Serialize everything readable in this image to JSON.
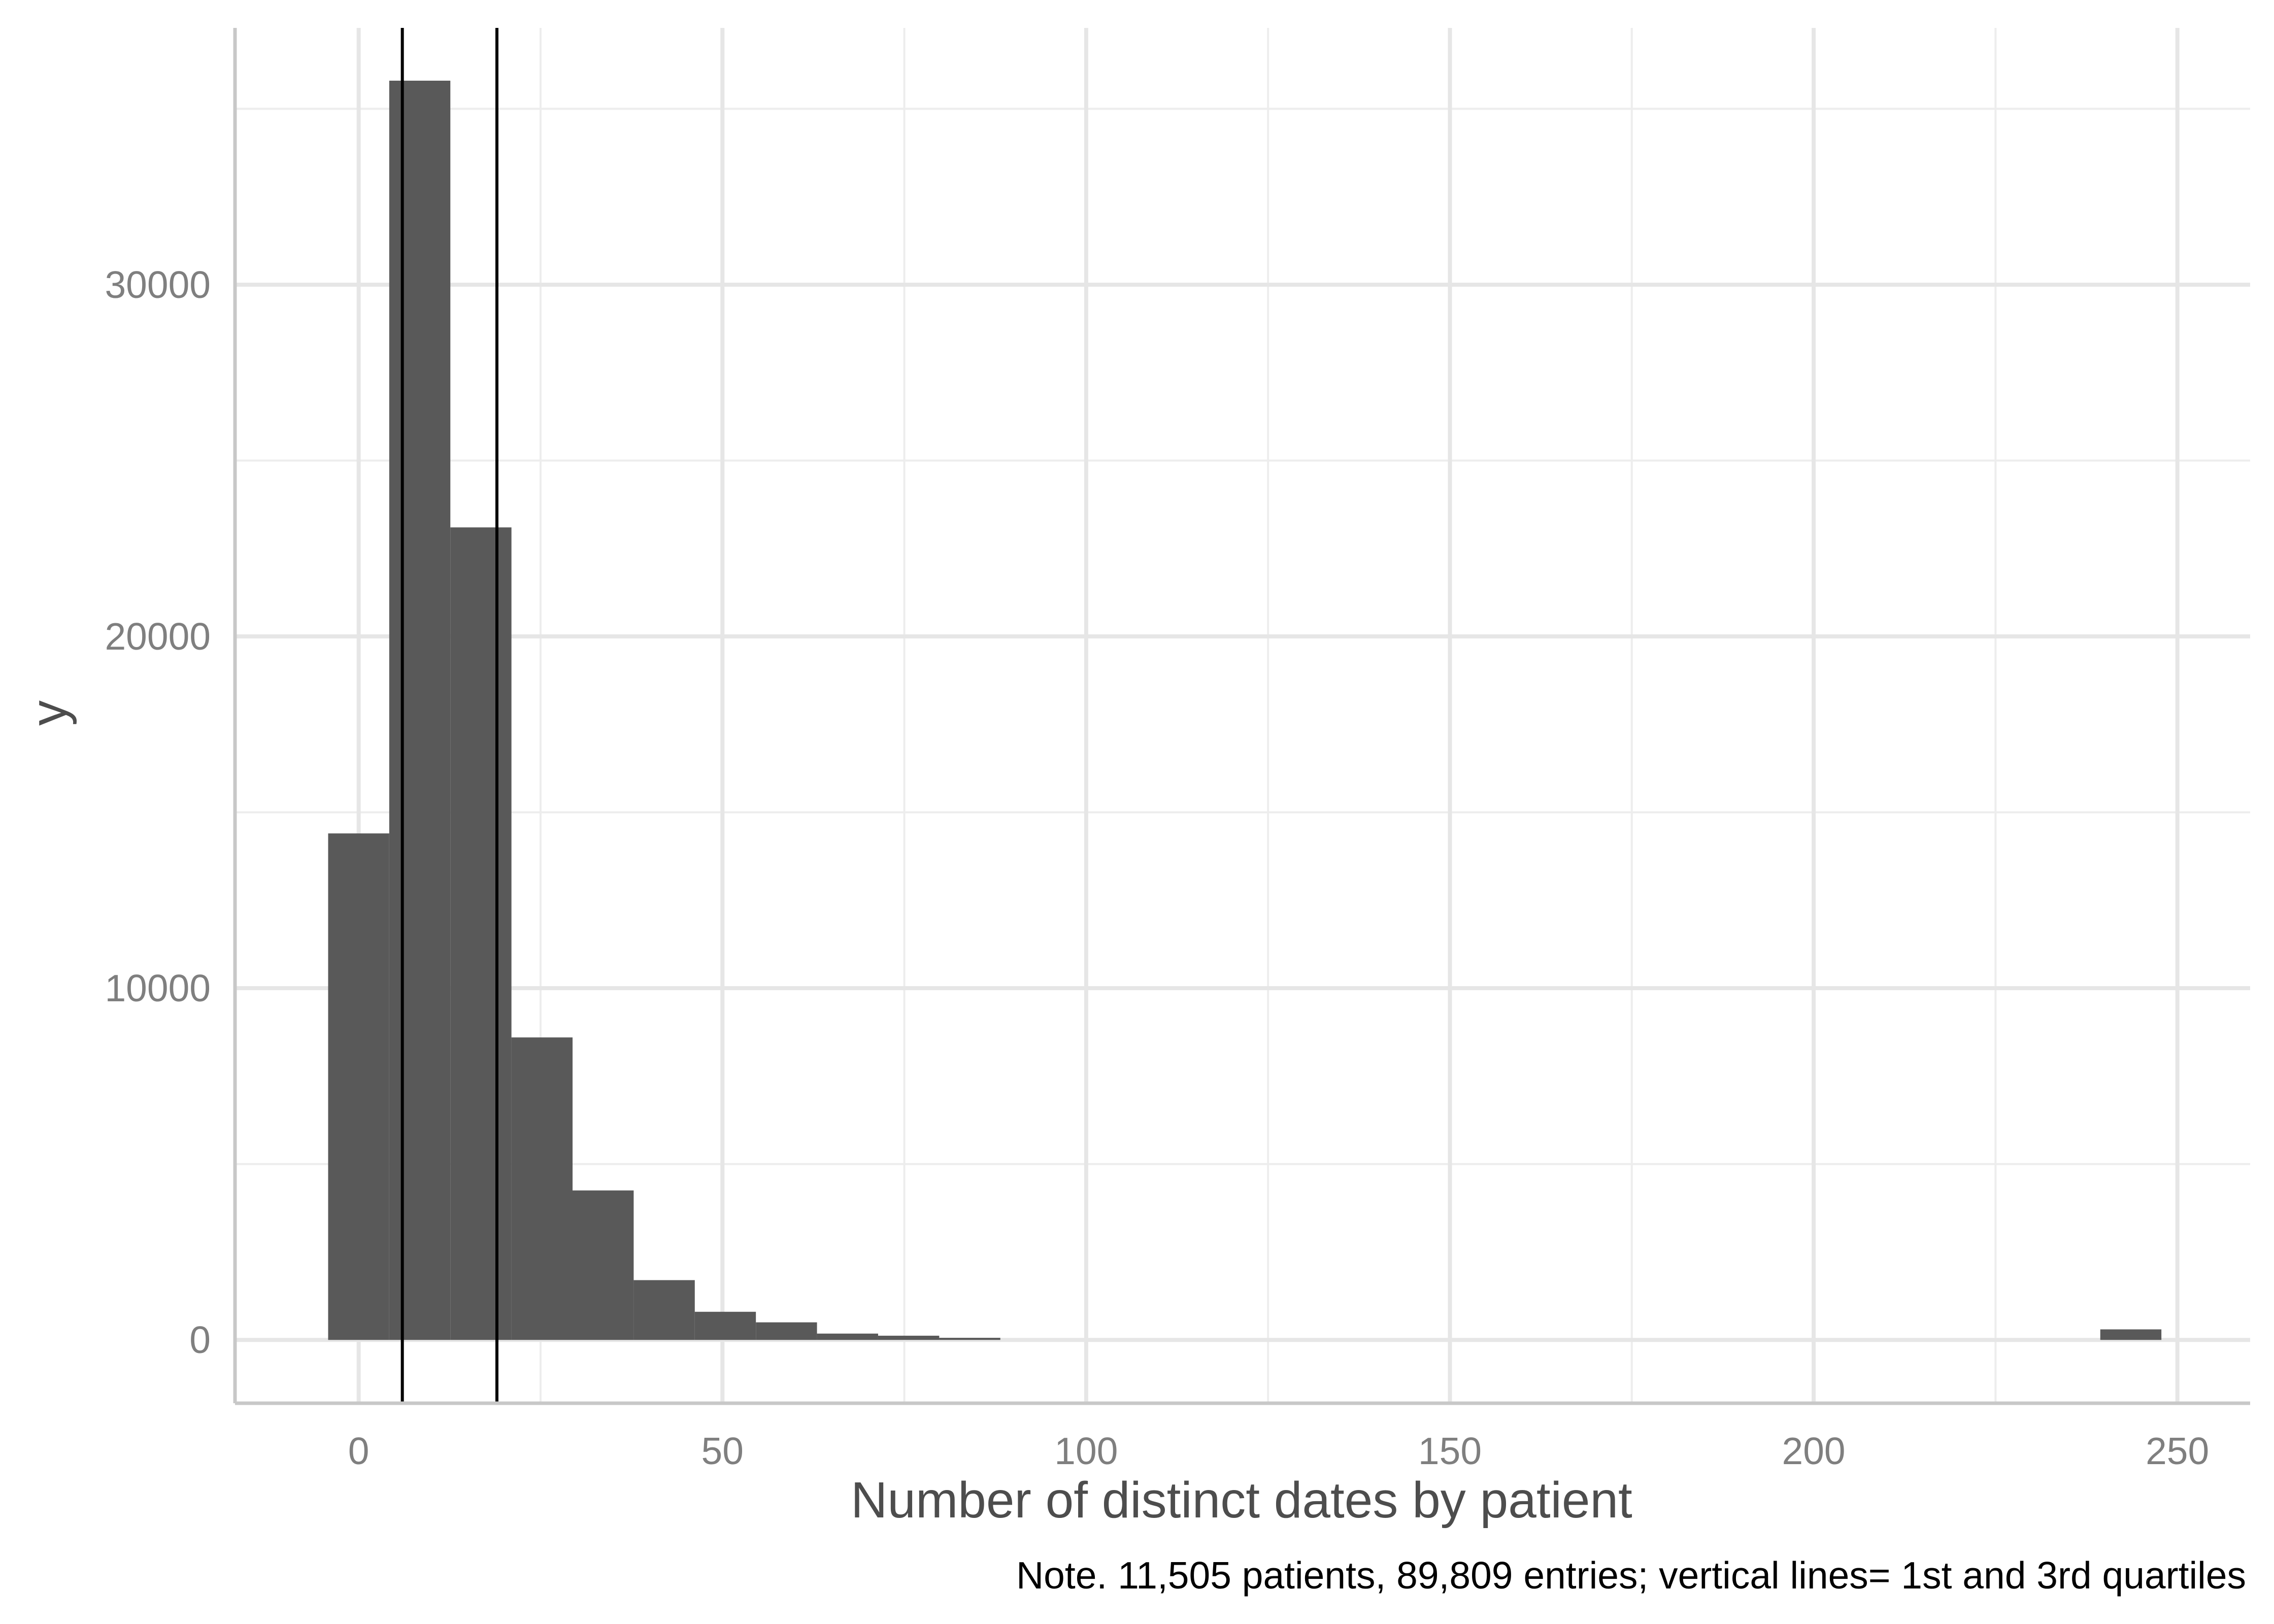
{
  "chart_data": {
    "type": "bar",
    "title": "",
    "xlabel": "Number of distinct dates by patient",
    "ylabel": "y",
    "caption": "Note. 11,505 patients, 89,809 entries; vertical lines= 1st and 3rd quartiles",
    "xlim": [
      -17,
      260
    ],
    "ylim": [
      -1800,
      37300
    ],
    "x_ticks": [
      0,
      50,
      100,
      150,
      200,
      250
    ],
    "x_tick_labels": [
      "0",
      "50",
      "100",
      "150",
      "200",
      "250"
    ],
    "y_ticks": [
      0,
      10000,
      20000,
      30000
    ],
    "y_tick_labels": [
      "0",
      "10000",
      "20000",
      "30000"
    ],
    "bin_width": 8.4,
    "bins": [
      {
        "x0": -4.2,
        "x1": 4.2,
        "count": 14400
      },
      {
        "x0": 4.2,
        "x1": 12.6,
        "count": 35800
      },
      {
        "x0": 12.6,
        "x1": 21.0,
        "count": 23100
      },
      {
        "x0": 21.0,
        "x1": 29.4,
        "count": 8600
      },
      {
        "x0": 29.4,
        "x1": 37.8,
        "count": 4250
      },
      {
        "x0": 37.8,
        "x1": 46.2,
        "count": 1700
      },
      {
        "x0": 46.2,
        "x1": 54.6,
        "count": 800
      },
      {
        "x0": 54.6,
        "x1": 63.0,
        "count": 500
      },
      {
        "x0": 63.0,
        "x1": 71.4,
        "count": 180
      },
      {
        "x0": 71.4,
        "x1": 79.8,
        "count": 120
      },
      {
        "x0": 79.8,
        "x1": 88.2,
        "count": 60
      },
      {
        "x0": 239.4,
        "x1": 247.8,
        "count": 300
      }
    ],
    "vlines": [
      {
        "x": 6,
        "label": "1st quartile"
      },
      {
        "x": 19,
        "label": "3rd quartile"
      }
    ],
    "bar_color": "#595959",
    "line_color": "#000000",
    "grid": true,
    "legend": "none"
  }
}
